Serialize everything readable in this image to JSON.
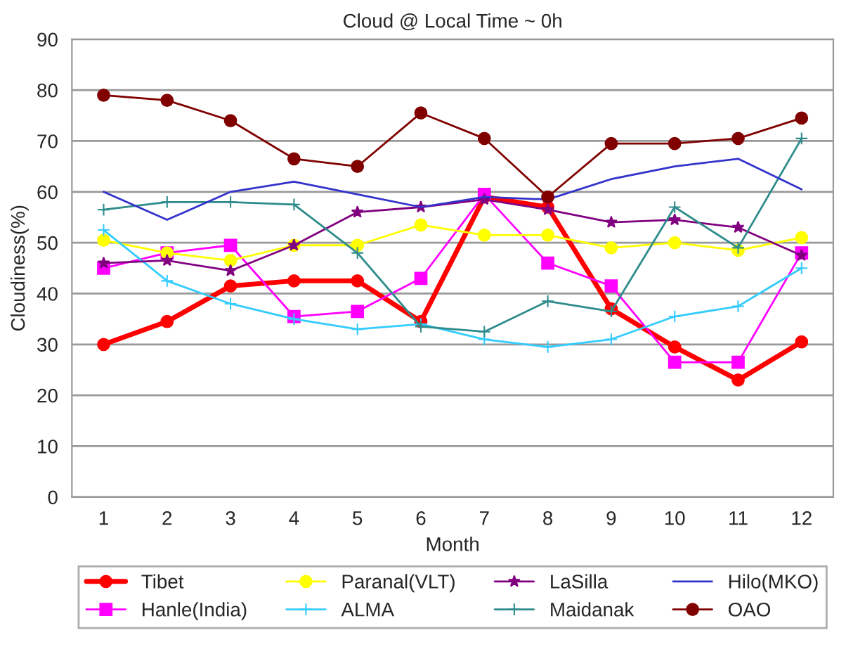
{
  "chart_data": {
    "type": "line",
    "title": "Cloud @ Local Time ~ 0h",
    "xlabel": "Month",
    "ylabel": "Cloudiness(%)",
    "categories": [
      "1",
      "2",
      "3",
      "4",
      "5",
      "6",
      "7",
      "8",
      "9",
      "10",
      "11",
      "12"
    ],
    "ylim": [
      0,
      90
    ],
    "yticks": [
      0,
      10,
      20,
      30,
      40,
      50,
      60,
      70,
      80,
      90
    ],
    "grid": "y",
    "legend": "bottom",
    "series": [
      {
        "name": "Tibet",
        "color": "#ff0000",
        "marker": "circle",
        "values": [
          30,
          34.5,
          41.5,
          42.5,
          42.5,
          34.5,
          59,
          57,
          37,
          29.5,
          23,
          30.5
        ]
      },
      {
        "name": "Hanle(India)",
        "color": "#ff00ff",
        "marker": "square",
        "values": [
          45,
          48,
          49.5,
          35.5,
          36.5,
          43,
          59.5,
          46,
          41.5,
          26.5,
          26.5,
          48
        ]
      },
      {
        "name": "Paranal(VLT)",
        "color": "#ffff00",
        "marker": "circle",
        "values": [
          50.5,
          48,
          46.5,
          49.5,
          49.5,
          53.5,
          51.5,
          51.5,
          49,
          50,
          48.5,
          51
        ]
      },
      {
        "name": "ALMA",
        "color": "#33ccff",
        "marker": "cross",
        "values": [
          52.5,
          42.5,
          38,
          35,
          33,
          34,
          31,
          29.5,
          31,
          35.5,
          37.5,
          45
        ]
      },
      {
        "name": "LaSilla",
        "color": "#800080",
        "marker": "star",
        "values": [
          46,
          46.5,
          44.5,
          49.5,
          56,
          57,
          58.5,
          56.5,
          54,
          54.5,
          53,
          47.5
        ]
      },
      {
        "name": "Maidanak",
        "color": "#2e8b8b",
        "marker": "cross",
        "values": [
          56.5,
          58,
          58,
          57.5,
          48,
          33.5,
          32.5,
          38.5,
          36.5,
          57,
          49,
          70.5
        ]
      },
      {
        "name": "Hilo(MKO)",
        "color": "#3333cc",
        "marker": "none",
        "values": [
          60,
          54.5,
          60,
          62,
          59.5,
          57,
          59,
          58.5,
          62.5,
          65,
          66.5,
          60.5
        ]
      },
      {
        "name": "OAO",
        "color": "#800000",
        "marker": "circle",
        "values": [
          79,
          78,
          74,
          66.5,
          65,
          75.5,
          70.5,
          59,
          69.5,
          69.5,
          70.5,
          74.5
        ]
      }
    ]
  }
}
